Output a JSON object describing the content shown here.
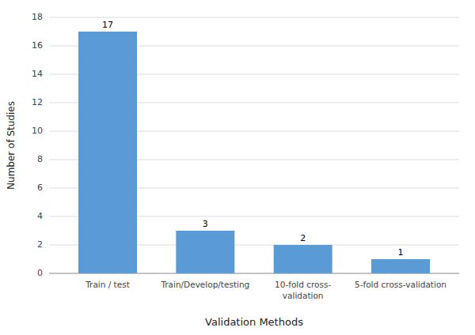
{
  "chart_data": {
    "type": "bar",
    "categories": [
      "Train / test",
      "Train/Develop/testing",
      "10-fold cross-\nvalidation",
      "5-fold cross-validation"
    ],
    "values": [
      17,
      3,
      2,
      1
    ],
    "color": "#5B9BD5",
    "xlabel": "Validation Methods",
    "ylabel": "Number of Studies",
    "ylim": [
      0,
      18
    ],
    "yticks": [
      0,
      2,
      4,
      6,
      8,
      10,
      12,
      14,
      16,
      18
    ],
    "grid": true,
    "data_labels": true
  }
}
